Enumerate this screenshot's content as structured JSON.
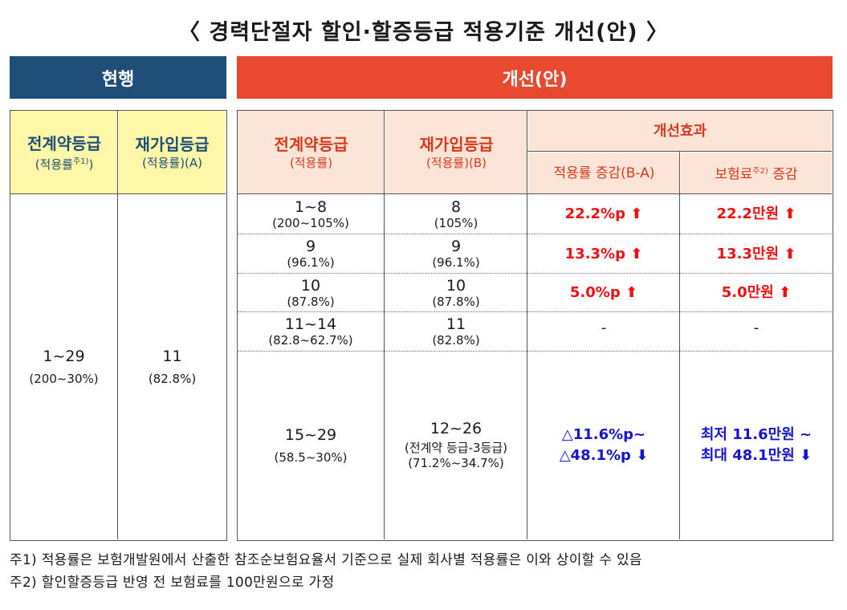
{
  "title": "〈 경력단절자 할인·할증등급 적용기준 개선(안) 〉",
  "header_current": "현행",
  "header_improved": "개선(안)",
  "current": {
    "col1_title": "전계약등급",
    "col1_sub": "(적용률",
    "col1_sup": "주1)",
    "col1_sub_end": ")",
    "col2_title": "재가입등급",
    "col2_sub": "(적용률)(A)",
    "grade1": "1~29",
    "rate1": "(200~30%)",
    "grade2": "11",
    "rate2": "(82.8%)"
  },
  "improved": {
    "col1_title": "전계약등급",
    "col1_sub": "(적용률)",
    "col2_title": "재가입등급",
    "col2_sub": "(적용률)(B)",
    "effect_title": "개선효과",
    "effect_col1": "적용률 증감(B-A)",
    "effect_col2_pre": "보험료",
    "effect_col2_sup": "주2)",
    "effect_col2_post": " 증감",
    "rows": [
      {
        "prev": "1~8",
        "prev_rate": "(200~105%)",
        "new": "8",
        "new_rate": "(105%)",
        "rate_change": "22.2%p",
        "premium_change": "22.2만원"
      },
      {
        "prev": "9",
        "prev_rate": "(96.1%)",
        "new": "9",
        "new_rate": "(96.1%)",
        "rate_change": "13.3%p",
        "premium_change": "13.3만원"
      },
      {
        "prev": "10",
        "prev_rate": "(87.8%)",
        "new": "10",
        "new_rate": "(87.8%)",
        "rate_change": "5.0%p",
        "premium_change": "5.0만원"
      },
      {
        "prev": "11~14",
        "prev_rate": "(82.8~62.7%)",
        "new": "11",
        "new_rate": "(82.8%)",
        "rate_change": "-",
        "premium_change": "-"
      },
      {
        "prev": "15~29",
        "prev_rate": "(58.5~30%)",
        "new": "12~26",
        "new_note": "(전계약 등급-3등급)",
        "new_rate": "(71.2%~34.7%)",
        "rate_change_line1": "△11.6%p~",
        "rate_change_line2": "△48.1%p",
        "premium_change_line1": "최저 11.6만원 ~",
        "premium_change_line2": "최대 48.1만원"
      }
    ]
  },
  "arrows": {
    "up": "⬆",
    "down": "⬇"
  },
  "notes": [
    "주1) 적용률은 보험개발원에서 산출한 참조순보험요율서 기준으로 실제 회사별 적용률은 이와 상이할 수 있음",
    "주2) 할인할증등급 반영 전 보험료를 100만원으로 가정"
  ],
  "colors": {
    "navy": "#1f4e79",
    "orange": "#e8492f",
    "yellow": "#fff7a8",
    "peach": "#fce5d6",
    "red": "#ee1111",
    "blue": "#1515d0"
  }
}
